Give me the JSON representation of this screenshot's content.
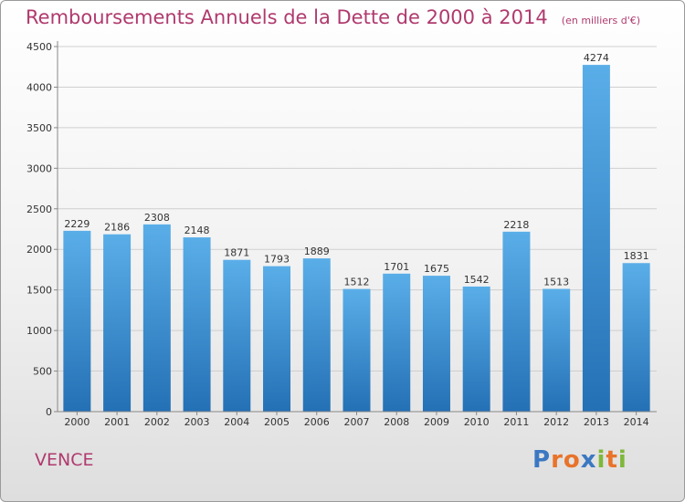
{
  "header": {
    "title": "Remboursements Annuels de la Dette de 2000 à 2014",
    "unit_note": "(en milliers d'€)"
  },
  "commune": "VENCE",
  "logo": {
    "text": "Proxiti",
    "letter_colors": [
      "#3b78c2",
      "#e8732a",
      "#e8732a",
      "#3b78c2",
      "#7fb83a",
      "#e8732a",
      "#7fb83a"
    ]
  },
  "colors": {
    "title": "#b03a6e",
    "bar_top": "#5aaee8",
    "bar_bottom": "#2470b5",
    "grid": "#cfcfcf",
    "axis": "#888888",
    "text": "#333333"
  },
  "chart_data": {
    "type": "bar",
    "title": "Remboursements Annuels de la Dette de 2000 à 2014",
    "subtitle": "(en milliers d'€)",
    "xlabel": "",
    "ylabel": "",
    "categories": [
      "2000",
      "2001",
      "2002",
      "2003",
      "2004",
      "2005",
      "2006",
      "2007",
      "2008",
      "2009",
      "2010",
      "2011",
      "2012",
      "2013",
      "2014"
    ],
    "values": [
      2229,
      2186,
      2308,
      2148,
      1871,
      1793,
      1889,
      1512,
      1701,
      1675,
      1542,
      2218,
      1513,
      4274,
      1831
    ],
    "ylim": [
      0,
      4500
    ],
    "yticks": [
      0,
      500,
      1000,
      1500,
      2000,
      2500,
      3000,
      3500,
      4000,
      4500
    ],
    "grid": true,
    "legend": "none"
  }
}
